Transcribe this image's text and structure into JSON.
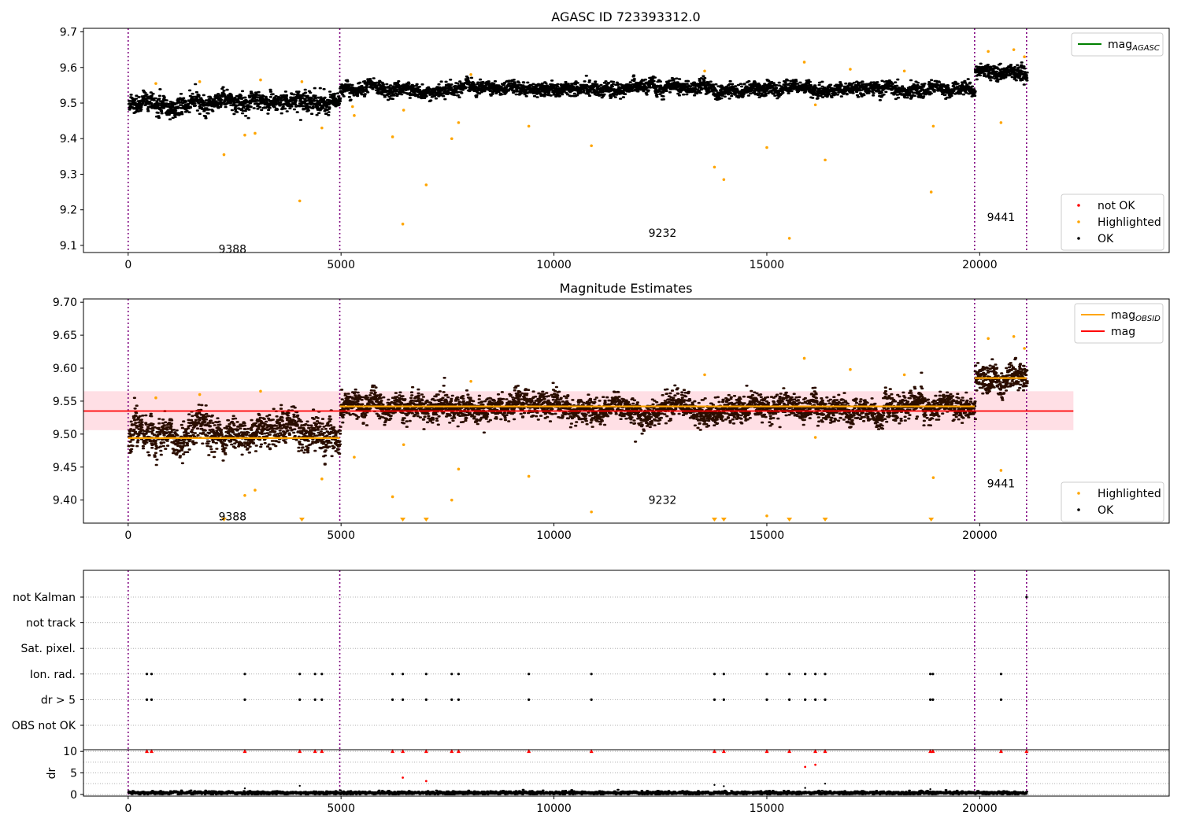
{
  "chart_data": [
    {
      "type": "scatter",
      "title": "AGASC ID 723393312.0",
      "xlim": [
        -1050,
        24450
      ],
      "ylim": [
        9.08,
        9.71
      ],
      "xticks": [
        0,
        5000,
        10000,
        15000,
        20000
      ],
      "yticks": [
        9.1,
        9.2,
        9.3,
        9.4,
        9.5,
        9.6,
        9.7
      ],
      "xtick_labels": [
        "0",
        "5000",
        "10000",
        "15000",
        "20000"
      ],
      "ytick_labels": [
        "9.1",
        "9.2",
        "9.3",
        "9.4",
        "9.5",
        "9.6",
        "9.7"
      ],
      "obsid_boundaries": [
        0,
        4970,
        19880,
        21100
      ],
      "obsid_labels": [
        {
          "text": "9388",
          "x": 2450,
          "y": 9.09
        },
        {
          "text": "9232",
          "x": 12550,
          "y": 9.135
        },
        {
          "text": "9441",
          "x": 20500,
          "y": 9.18
        }
      ],
      "series": [
        {
          "name": "OK",
          "color": "#000000",
          "segments": [
            {
              "x0": 0,
              "x1": 4970,
              "center": 9.5,
              "spread": 0.018
            },
            {
              "x0": 4970,
              "x1": 19880,
              "center": 9.54,
              "spread": 0.013
            },
            {
              "x0": 19880,
              "x1": 21100,
              "center": 9.585,
              "spread": 0.014
            }
          ]
        },
        {
          "name": "Highlighted",
          "color": "#ffa500",
          "points": [
            [
              2250,
              9.355
            ],
            [
              2740,
              9.41
            ],
            [
              2980,
              9.415
            ],
            [
              4030,
              9.225
            ],
            [
              4080,
              9.56
            ],
            [
              4550,
              9.43
            ],
            [
              5270,
              9.49
            ],
            [
              5310,
              9.465
            ],
            [
              6210,
              9.405
            ],
            [
              6450,
              9.16
            ],
            [
              6470,
              9.48
            ],
            [
              7000,
              9.27
            ],
            [
              7600,
              9.4
            ],
            [
              7760,
              9.445
            ],
            [
              9410,
              9.435
            ],
            [
              10880,
              9.38
            ],
            [
              13770,
              9.32
            ],
            [
              13990,
              9.285
            ],
            [
              15000,
              9.375
            ],
            [
              15530,
              9.12
            ],
            [
              16140,
              9.495
            ],
            [
              16370,
              9.34
            ],
            [
              18860,
              9.25
            ],
            [
              18910,
              9.435
            ],
            [
              20500,
              9.445
            ],
            [
              650,
              9.555
            ],
            [
              1680,
              9.56
            ],
            [
              3110,
              9.565
            ],
            [
              8050,
              9.58
            ],
            [
              13540,
              9.59
            ],
            [
              15880,
              9.615
            ],
            [
              16960,
              9.595
            ],
            [
              18230,
              9.59
            ],
            [
              20200,
              9.645
            ],
            [
              20800,
              9.65
            ],
            [
              21050,
              9.63
            ]
          ]
        },
        {
          "name": "not OK",
          "color": "#ff0000",
          "points": []
        },
        {
          "name": "mag_AGASC",
          "color": "#008000",
          "points": []
        }
      ],
      "legends": [
        {
          "position": "upper-right",
          "entries": [
            {
              "label": "mag",
              "sub": "AGASC",
              "color": "#008000",
              "kind": "line"
            }
          ]
        },
        {
          "position": "lower-right",
          "entries": [
            {
              "label": "not OK",
              "color": "#ff0000",
              "kind": "dot"
            },
            {
              "label": "Highlighted",
              "color": "#ffa500",
              "kind": "dot"
            },
            {
              "label": "OK",
              "color": "#000000",
              "kind": "dot"
            }
          ]
        }
      ]
    },
    {
      "type": "scatter",
      "title": "Magnitude Estimates",
      "xlim": [
        -1050,
        24450
      ],
      "ylim": [
        9.365,
        9.705
      ],
      "xticks": [
        0,
        5000,
        10000,
        15000,
        20000
      ],
      "yticks": [
        9.4,
        9.45,
        9.5,
        9.55,
        9.6,
        9.65,
        9.7
      ],
      "xtick_labels": [
        "0",
        "5000",
        "10000",
        "15000",
        "20000"
      ],
      "ytick_labels": [
        "9.40",
        "9.45",
        "9.50",
        "9.55",
        "9.60",
        "9.65",
        "9.70"
      ],
      "obsid_boundaries": [
        0,
        4970,
        19880,
        21100
      ],
      "obsid_labels": [
        {
          "text": "9388",
          "x": 2450,
          "y": 9.375
        },
        {
          "text": "9232",
          "x": 12550,
          "y": 9.4
        },
        {
          "text": "9441",
          "x": 20500,
          "y": 9.425
        }
      ],
      "mag": {
        "value": 9.535,
        "band": [
          9.506,
          9.565
        ],
        "x0": -1050,
        "x1": 22200,
        "color": "#ff0000",
        "band_color": "#ffc0cb"
      },
      "mag_obsid": [
        {
          "x0": 0,
          "x1": 4970,
          "value": 9.494
        },
        {
          "x0": 4970,
          "x1": 19880,
          "value": 9.542
        },
        {
          "x0": 19880,
          "x1": 21100,
          "value": 9.585
        }
      ],
      "series": [
        {
          "name": "OK",
          "color": "#000000",
          "segments": [
            {
              "x0": 0,
              "x1": 4970,
              "center": 9.5,
              "spread": 0.018
            },
            {
              "x0": 4970,
              "x1": 19880,
              "center": 9.54,
              "spread": 0.013
            },
            {
              "x0": 19880,
              "x1": 21100,
              "center": 9.585,
              "spread": 0.014
            }
          ]
        },
        {
          "name": "Highlighted",
          "color": "#ffa500",
          "points": [
            [
              2740,
              9.407
            ],
            [
              2980,
              9.415
            ],
            [
              4550,
              9.432
            ],
            [
              5310,
              9.465
            ],
            [
              6210,
              9.405
            ],
            [
              6470,
              9.484
            ],
            [
              7600,
              9.4
            ],
            [
              7760,
              9.447
            ],
            [
              9410,
              9.436
            ],
            [
              10880,
              9.382
            ],
            [
              15000,
              9.376
            ],
            [
              16140,
              9.495
            ],
            [
              18910,
              9.434
            ],
            [
              20500,
              9.445
            ],
            [
              650,
              9.555
            ],
            [
              1680,
              9.56
            ],
            [
              3110,
              9.565
            ],
            [
              8050,
              9.58
            ],
            [
              13540,
              9.59
            ],
            [
              15880,
              9.615
            ],
            [
              16960,
              9.598
            ],
            [
              18230,
              9.59
            ],
            [
              20200,
              9.645
            ],
            [
              20800,
              9.648
            ],
            [
              21050,
              9.63
            ]
          ]
        },
        {
          "name": "Highlighted (below range)",
          "color": "#ffa500",
          "points_x": [
            2250,
            4080,
            6450,
            7000,
            13770,
            13990,
            15530,
            16370,
            18860
          ]
        }
      ],
      "legends": [
        {
          "position": "upper-right",
          "entries": [
            {
              "label": "mag",
              "sub": "OBSID",
              "color": "#ffa500",
              "kind": "line"
            },
            {
              "label": "mag",
              "sub": "",
              "color": "#ff0000",
              "kind": "line"
            }
          ]
        },
        {
          "position": "lower-right",
          "entries": [
            {
              "label": "Highlighted",
              "color": "#ffa500",
              "kind": "dot"
            },
            {
              "label": "OK",
              "color": "#000000",
              "kind": "dot"
            }
          ]
        }
      ]
    },
    {
      "type": "scatter",
      "title": "",
      "xlim": [
        -1050,
        24450
      ],
      "categories": [
        "not Kalman",
        "not track",
        "Sat. pixel.",
        "Ion. rad.",
        "dr > 5",
        "OBS not OK"
      ],
      "obsid_boundaries": [
        0,
        4970,
        19880,
        21100
      ],
      "flags": {
        "not Kalman": [
          21100
        ],
        "not track": [],
        "Sat. pixel.": [],
        "Ion. rad.": [
          440,
          550,
          2740,
          4030,
          4390,
          4550,
          6210,
          6450,
          7000,
          7600,
          7760,
          9410,
          10880,
          13770,
          13990,
          15000,
          15530,
          15900,
          16140,
          16370,
          18840,
          18900,
          20500
        ],
        "dr > 5": [
          440,
          550,
          2740,
          4030,
          4390,
          4550,
          6210,
          6450,
          7000,
          7600,
          7760,
          9410,
          10880,
          13770,
          13990,
          15000,
          15530,
          15900,
          16140,
          16370,
          18840,
          18900,
          20500
        ],
        "OBS not OK": []
      }
    },
    {
      "type": "scatter",
      "title": "",
      "ylabel": "dr",
      "xlim": [
        -1050,
        24450
      ],
      "ylim": [
        -0.4,
        10.4
      ],
      "xticks": [
        0,
        5000,
        10000,
        15000,
        20000
      ],
      "yticks": [
        0,
        5,
        10
      ],
      "xtick_labels": [
        "0",
        "5000",
        "10000",
        "15000",
        "20000"
      ],
      "ytick_labels": [
        "0",
        "5",
        "10"
      ],
      "obsid_boundaries": [
        0,
        4970,
        19880,
        21100
      ],
      "series": [
        {
          "name": "dr",
          "color": "#000000",
          "x0": 0,
          "x1": 21100,
          "center": 0.35,
          "spread": 0.2
        },
        {
          "name": "dr > 10 (clipped)",
          "color": "#ff0000",
          "points_x": [
            440,
            550,
            2740,
            4030,
            4390,
            4550,
            6210,
            6450,
            7000,
            7600,
            7760,
            9410,
            10880,
            13770,
            13990,
            15000,
            15530,
            16140,
            16370,
            18840,
            18900,
            20500,
            21100
          ]
        },
        {
          "name": "dr outliers",
          "color": "#ff0000",
          "points": [
            [
              6450,
              3.9
            ],
            [
              7000,
              3.1
            ],
            [
              15900,
              6.4
            ],
            [
              16140,
              6.9
            ]
          ]
        },
        {
          "name": "dr outliers (ok)",
          "color": "#000000",
          "points": [
            [
              2740,
              1.4
            ],
            [
              4030,
              2.0
            ],
            [
              13770,
              2.2
            ],
            [
              15900,
              1.5
            ],
            [
              16370,
              2.5
            ],
            [
              18840,
              1.2
            ],
            [
              13990,
              1.9
            ]
          ]
        }
      ]
    }
  ]
}
